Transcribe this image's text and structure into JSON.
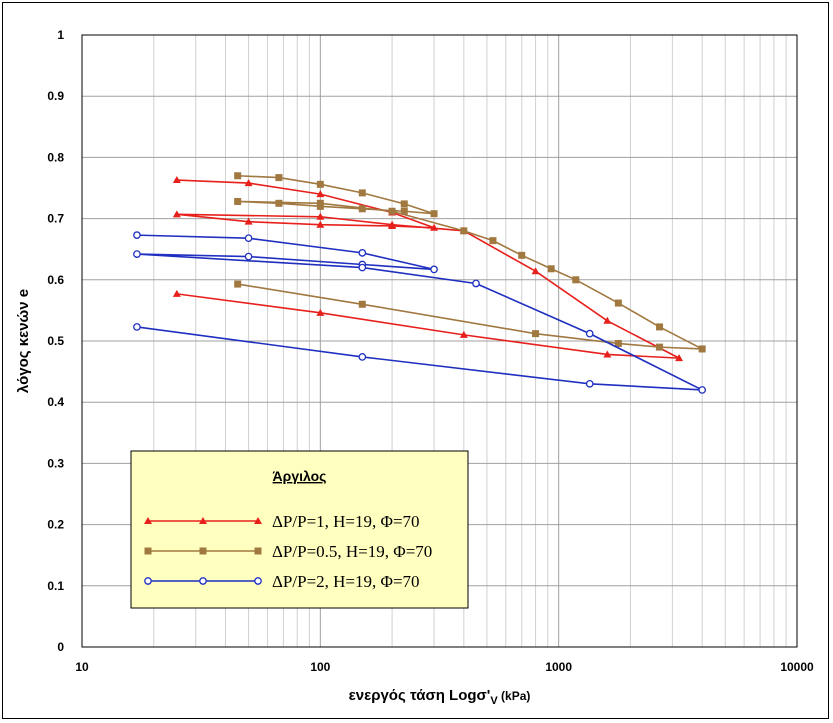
{
  "chart_data": {
    "type": "line",
    "title": "",
    "xlabel": "ενεργός τάση Logσ'",
    "xlabel_sub": "V",
    "xlabel_unit": " (kPa)",
    "ylabel": "λόγος κενών e",
    "xscale": "log",
    "xlim": [
      10,
      10000
    ],
    "ylim": [
      0,
      1
    ],
    "x_ticks": [
      "10",
      "100",
      "1000",
      "10000"
    ],
    "y_ticks": [
      "0",
      "0.1",
      "0.2",
      "0.3",
      "0.4",
      "0.5",
      "0.6",
      "0.7",
      "0.8",
      "0.9",
      "1"
    ],
    "grid": true,
    "legend": {
      "title": "Άργιλος",
      "placement": "bottom-left"
    },
    "series": [
      {
        "name": "ΔP/P=1, H=19, Φ=70",
        "color": "#e8201c",
        "marker": "triangle",
        "x": [
          25,
          50,
          100,
          200,
          300,
          200,
          100,
          50,
          25,
          100,
          200,
          400,
          800,
          1600,
          3200,
          1600,
          400,
          100,
          25
        ],
        "y": [
          0.763,
          0.758,
          0.74,
          0.71,
          0.685,
          0.688,
          0.69,
          0.695,
          0.707,
          0.703,
          0.69,
          0.68,
          0.614,
          0.533,
          0.472,
          0.478,
          0.51,
          0.546,
          0.577
        ]
      },
      {
        "name": "ΔP/P=0.5, H=19, Φ=70",
        "color": "#a07840",
        "marker": "square",
        "x": [
          45,
          67,
          100,
          150,
          225,
          300,
          225,
          150,
          100,
          67,
          45,
          100,
          200,
          400,
          530,
          700,
          930,
          1180,
          1780,
          2650,
          4000,
          2650,
          1780,
          800,
          150,
          45
        ],
        "y": [
          0.77,
          0.767,
          0.756,
          0.742,
          0.724,
          0.708,
          0.712,
          0.716,
          0.72,
          0.725,
          0.728,
          0.725,
          0.712,
          0.68,
          0.664,
          0.64,
          0.618,
          0.6,
          0.562,
          0.523,
          0.487,
          0.49,
          0.496,
          0.512,
          0.56,
          0.593
        ]
      },
      {
        "name": "ΔP/P=2, H=19, Φ=70",
        "color": "#1f2fc0",
        "marker": "circle",
        "x": [
          17,
          50,
          150,
          300,
          150,
          50,
          17,
          150,
          450,
          1350,
          4000,
          1350,
          150,
          17
        ],
        "y": [
          0.673,
          0.668,
          0.644,
          0.617,
          0.625,
          0.638,
          0.642,
          0.62,
          0.594,
          0.512,
          0.42,
          0.43,
          0.474,
          0.523
        ]
      }
    ]
  }
}
